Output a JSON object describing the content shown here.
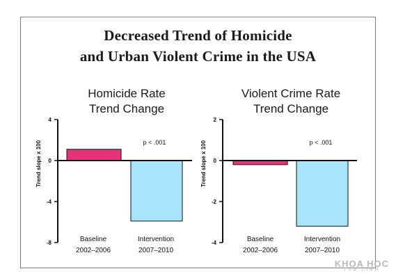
{
  "title": {
    "line1": "Decreased Trend of Homicide",
    "line2": "and Urban Violent Crime in the USA"
  },
  "colors": {
    "baseline": "#e0377a",
    "intervention": "#a8e4fb",
    "axis": "#111111"
  },
  "watermark": {
    "line1": "KHOA HỌC",
    "line2": "TÂM LINH"
  },
  "chart_data": [
    {
      "type": "bar",
      "title_lines": [
        "Homicide Rate",
        "Trend Change"
      ],
      "ylabel": "Trend slope x 100",
      "ylim": [
        -8,
        4
      ],
      "yticks": [
        4,
        0,
        -4,
        -8
      ],
      "categories": [
        {
          "line1": "Baseline",
          "line2": "2002–2006"
        },
        {
          "line1": "Intervention",
          "line2": "2007–2010"
        }
      ],
      "values": [
        1.1,
        -5.9
      ],
      "annotation": "p < .001"
    },
    {
      "type": "bar",
      "title_lines": [
        "Violent Crime Rate",
        "Trend Change"
      ],
      "ylabel": "Trend slope x 100",
      "ylim": [
        -4,
        2
      ],
      "yticks": [
        2,
        0,
        -2,
        -4
      ],
      "categories": [
        {
          "line1": "Baseline",
          "line2": "2002–2006"
        },
        {
          "line1": "Intervention",
          "line2": "2007–2010"
        }
      ],
      "values": [
        -0.2,
        -3.2
      ],
      "annotation": "p < .001"
    }
  ]
}
